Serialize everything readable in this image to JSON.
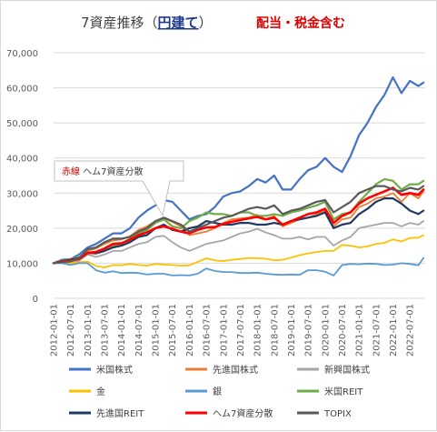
{
  "chart_data": {
    "type": "line",
    "title": {
      "main": "7資産推移（",
      "emphasis": "円建て",
      "close": "）",
      "note": "配当・税金含む"
    },
    "ylim": [
      0,
      70000
    ],
    "yticks": [
      "0",
      "10,000",
      "20,000",
      "30,000",
      "40,000",
      "50,000",
      "60,000",
      "70,000"
    ],
    "ytick_values": [
      0,
      10000,
      20000,
      30000,
      40000,
      50000,
      60000,
      70000
    ],
    "grid": true,
    "legend_position": "bottom",
    "xticks": [
      "2012-01-01",
      "2012-07-01",
      "2013-01-01",
      "2013-07-01",
      "2014-01-01",
      "2014-07-01",
      "2015-01-01",
      "2015-07-01",
      "2016-01-01",
      "2016-07-01",
      "2017-01-01",
      "2017-07-01",
      "2018-01-01",
      "2018-07-01",
      "2019-01-01",
      "2019-07-01",
      "2020-01-01",
      "2020-07-01",
      "2021-01-01",
      "2021-07-01",
      "2022-01-01",
      "2022-07-01"
    ],
    "xtick_years": [
      2012,
      2012.5,
      2013,
      2013.5,
      2014,
      2014.5,
      2015,
      2015.5,
      2016,
      2016.5,
      2017,
      2017.5,
      2018,
      2018.5,
      2019,
      2019.5,
      2020,
      2020.5,
      2021,
      2021.5,
      2022,
      2022.5
    ],
    "x": [
      2012.0,
      2012.25,
      2012.5,
      2012.75,
      2013.0,
      2013.25,
      2013.5,
      2013.75,
      2014.0,
      2014.25,
      2014.5,
      2014.75,
      2015.0,
      2015.25,
      2015.5,
      2015.75,
      2016.0,
      2016.25,
      2016.5,
      2016.75,
      2017.0,
      2017.25,
      2017.5,
      2017.75,
      2018.0,
      2018.25,
      2018.5,
      2018.75,
      2019.0,
      2019.25,
      2019.5,
      2019.75,
      2020.0,
      2020.25,
      2020.5,
      2020.75,
      2021.0,
      2021.25,
      2021.5,
      2021.75,
      2022.0,
      2022.25,
      2022.5,
      2022.75,
      2022.9
    ],
    "xlim": [
      2012.0,
      2022.95
    ],
    "series": [
      {
        "name": "米国株式",
        "color": "#4472c4",
        "width": 2.2,
        "values": [
          10000,
          11000,
          11200,
          12500,
          14500,
          15500,
          17000,
          18500,
          18500,
          20000,
          23000,
          25000,
          26500,
          28000,
          27500,
          25000,
          22500,
          23500,
          24000,
          26000,
          29000,
          30000,
          30500,
          32000,
          34000,
          33000,
          35000,
          31000,
          31000,
          34000,
          36500,
          37500,
          40000,
          37500,
          36000,
          40500,
          46500,
          50000,
          54500,
          58000,
          63000,
          58500,
          62000,
          60500,
          61500
        ]
      },
      {
        "name": "先進国株式",
        "color": "#ed7d31",
        "width": 1.8,
        "values": [
          10000,
          10500,
          10800,
          11700,
          13500,
          14200,
          15500,
          16500,
          16800,
          17700,
          19500,
          20500,
          22000,
          22800,
          21800,
          20500,
          18000,
          18500,
          19000,
          20000,
          21500,
          22500,
          22800,
          23000,
          23800,
          22500,
          23500,
          20500,
          21500,
          22500,
          23000,
          24000,
          24800,
          20500,
          22500,
          23000,
          26000,
          27000,
          28500,
          29000,
          30000,
          27500,
          30000,
          28500,
          30500
        ]
      },
      {
        "name": "新興国株式",
        "color": "#a5a5a5",
        "width": 1.8,
        "values": [
          10000,
          10200,
          10000,
          10700,
          12500,
          11800,
          12500,
          13500,
          13500,
          14500,
          15500,
          16000,
          17500,
          17800,
          16000,
          14500,
          13500,
          14500,
          15500,
          16000,
          16500,
          17500,
          18500,
          19000,
          19800,
          18800,
          18000,
          17000,
          17000,
          17500,
          16800,
          17500,
          17500,
          15000,
          16500,
          17500,
          20000,
          20500,
          21000,
          21500,
          21500,
          20500,
          21500,
          21000,
          22000
        ]
      },
      {
        "name": "金",
        "color": "#ffc000",
        "width": 1.8,
        "values": [
          10000,
          10500,
          10000,
          10300,
          10500,
          9200,
          8800,
          9500,
          9400,
          9800,
          9500,
          9300,
          9800,
          9600,
          9500,
          9300,
          9400,
          10400,
          11400,
          10800,
          10600,
          11000,
          11200,
          11500,
          11400,
          11300,
          10800,
          11000,
          11600,
          12300,
          12800,
          13200,
          13500,
          13500,
          15200,
          15000,
          14500,
          14800,
          15500,
          15800,
          16800,
          16200,
          17200,
          17300,
          18000
        ]
      },
      {
        "name": "銀",
        "color": "#5b9bd5",
        "width": 1.8,
        "values": [
          10000,
          10000,
          9500,
          10000,
          10000,
          8000,
          7300,
          7700,
          7200,
          7300,
          7200,
          6800,
          7000,
          7000,
          6500,
          6600,
          6500,
          7000,
          8500,
          7800,
          7500,
          7500,
          7200,
          7200,
          7300,
          7000,
          6800,
          6700,
          6800,
          6700,
          8000,
          8000,
          7600,
          6500,
          9500,
          9800,
          9700,
          9900,
          9800,
          9500,
          9600,
          10000,
          9800,
          9400,
          11500
        ]
      },
      {
        "name": "米国REIT",
        "color": "#70ad47",
        "width": 2.2,
        "values": [
          10000,
          10700,
          11200,
          11700,
          13000,
          13200,
          14000,
          15000,
          15500,
          17000,
          18500,
          19500,
          21500,
          22500,
          20500,
          20000,
          22000,
          23000,
          24500,
          24000,
          24000,
          23500,
          24500,
          24500,
          23500,
          23500,
          24000,
          23500,
          24500,
          25000,
          25800,
          26500,
          27500,
          22500,
          24000,
          24500,
          27500,
          30000,
          32500,
          34000,
          33500,
          31000,
          32500,
          32500,
          33500
        ]
      },
      {
        "name": "先進国REIT",
        "color": "#203864",
        "width": 2.2,
        "values": [
          10000,
          10600,
          11000,
          11500,
          13000,
          12800,
          13500,
          14500,
          15000,
          16000,
          17500,
          18000,
          20000,
          21000,
          19500,
          19000,
          20000,
          20500,
          22000,
          21500,
          21000,
          21000,
          21500,
          21500,
          21000,
          21000,
          21500,
          21000,
          22000,
          22500,
          23000,
          23500,
          24500,
          20000,
          21000,
          21500,
          24000,
          25500,
          27500,
          28500,
          28500,
          27000,
          25000,
          24000,
          25000
        ]
      },
      {
        "name": "ヘム7資産分散",
        "color": "#ff0000",
        "width": 2.6,
        "values": [
          10000,
          10500,
          10700,
          11200,
          12900,
          13200,
          14200,
          15500,
          15700,
          16700,
          18000,
          18800,
          20000,
          20500,
          19800,
          19000,
          18500,
          19500,
          20200,
          20300,
          21200,
          21800,
          22300,
          22800,
          23200,
          22500,
          23000,
          21000,
          22000,
          23000,
          24000,
          24500,
          25500,
          21500,
          23500,
          24500,
          27000,
          28500,
          29500,
          30500,
          31500,
          29500,
          30000,
          29500,
          31000
        ]
      },
      {
        "name": "TOPIX",
        "color": "#595959",
        "width": 2.2,
        "values": [
          10000,
          10300,
          10500,
          11500,
          14000,
          14500,
          16000,
          17000,
          17000,
          17500,
          19000,
          20000,
          22000,
          23000,
          22000,
          21000,
          19000,
          20000,
          21000,
          22000,
          23000,
          23500,
          24500,
          25500,
          26000,
          25500,
          26500,
          24000,
          25000,
          25500,
          26500,
          27500,
          28000,
          24500,
          26000,
          27500,
          30000,
          31000,
          32000,
          32000,
          31000,
          30500,
          31500,
          31000,
          32000
        ]
      }
    ],
    "legend": [
      "米国株式",
      "先進国株式",
      "新興国株式",
      "金",
      "銀",
      "米国REIT",
      "先進国REIT",
      "ヘム7資産分散",
      "TOPIX"
    ],
    "annotation": {
      "part1": "赤線",
      "part2": " ヘム7資産分散"
    }
  }
}
